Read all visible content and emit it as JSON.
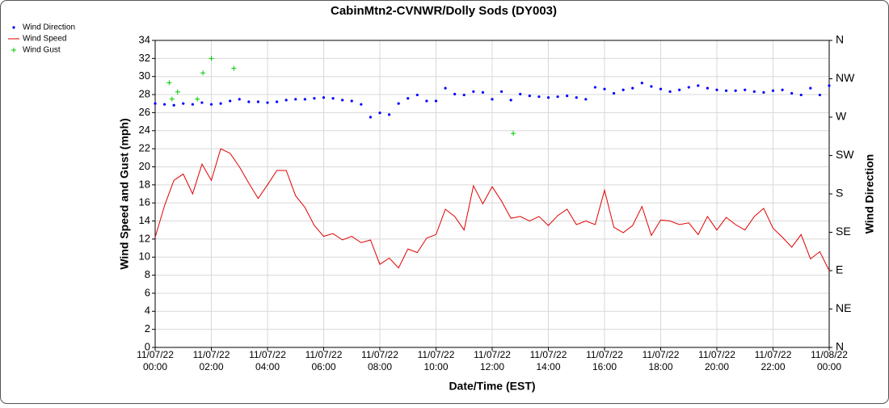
{
  "chart_data": {
    "type": "line",
    "title": "CabinMtn2-CVNWR/Dolly Sods (DY003)",
    "xlabel": "Date/Time (EST)",
    "ylabel": "Wind Speed and Gust (mph)",
    "y2label": "Wind Direction",
    "x": [
      0,
      20,
      40,
      60,
      80,
      100,
      120,
      140,
      160,
      180,
      200,
      220,
      240,
      260,
      280,
      300,
      320,
      340,
      360,
      380,
      400,
      420,
      440,
      460,
      480,
      500,
      520,
      540,
      560,
      580,
      600,
      620,
      640,
      660,
      680,
      700,
      720,
      740,
      760,
      780,
      800,
      820,
      840,
      860,
      880,
      900,
      920,
      940,
      960,
      980,
      1000,
      1020,
      1040,
      1060,
      1080,
      1100,
      1120,
      1140,
      1160,
      1180,
      1200,
      1220,
      1240,
      1260,
      1280,
      1300,
      1320,
      1340,
      1360,
      1380,
      1400,
      1420,
      1440
    ],
    "xlim": [
      0,
      1440
    ],
    "xticks": [
      {
        "value": 0,
        "label": "11/07/22 00:00"
      },
      {
        "value": 120,
        "label": "11/07/22 02:00"
      },
      {
        "value": 240,
        "label": "11/07/22 04:00"
      },
      {
        "value": 360,
        "label": "11/07/22 06:00"
      },
      {
        "value": 480,
        "label": "11/07/22 08:00"
      },
      {
        "value": 600,
        "label": "11/07/22 10:00"
      },
      {
        "value": 720,
        "label": "11/07/22 12:00"
      },
      {
        "value": 840,
        "label": "11/07/22 14:00"
      },
      {
        "value": 960,
        "label": "11/07/22 16:00"
      },
      {
        "value": 1080,
        "label": "11/07/22 18:00"
      },
      {
        "value": 1200,
        "label": "11/07/22 20:00"
      },
      {
        "value": 1320,
        "label": "11/07/22 22:00"
      },
      {
        "value": 1440,
        "label": "11/08/22 00:00"
      }
    ],
    "ylim": [
      0,
      34
    ],
    "yticks": [
      0,
      2,
      4,
      6,
      8,
      10,
      12,
      14,
      16,
      18,
      20,
      22,
      24,
      26,
      28,
      30,
      32,
      34
    ],
    "y2lim": [
      0,
      360
    ],
    "y2ticks": [
      {
        "value": 0,
        "label": "N"
      },
      {
        "value": 45,
        "label": "NE"
      },
      {
        "value": 90,
        "label": "E"
      },
      {
        "value": 135,
        "label": "SE"
      },
      {
        "value": 180,
        "label": "S"
      },
      {
        "value": 225,
        "label": "SW"
      },
      {
        "value": 270,
        "label": "W"
      },
      {
        "value": 315,
        "label": "NW"
      },
      {
        "value": 360,
        "label": "N"
      }
    ],
    "grid": true,
    "legend": "top-left",
    "series": [
      {
        "name": "Wind Direction",
        "color": "#0000ff",
        "mark": "dot",
        "axis": "y2",
        "values": [
          286,
          285,
          284,
          286,
          285,
          287,
          285,
          286,
          289,
          291,
          288,
          288,
          287,
          288,
          290,
          291,
          291,
          292,
          293,
          292,
          290,
          289,
          285,
          270,
          275,
          273,
          286,
          292,
          296,
          289,
          289,
          304,
          297,
          296,
          300,
          299,
          291,
          300,
          290,
          297,
          295,
          294,
          293,
          294,
          295,
          293,
          291,
          305,
          303,
          298,
          302,
          304,
          310,
          306,
          303,
          300,
          302,
          305,
          307,
          304,
          302,
          301,
          301,
          302,
          300,
          299,
          301,
          302,
          298,
          296,
          304,
          296,
          307
        ]
      },
      {
        "name": "Wind Speed",
        "color": "#e00000",
        "mark": "line",
        "values": [
          12.2,
          15.7,
          18.5,
          19.2,
          17.0,
          20.3,
          18.5,
          22.0,
          21.5,
          20.0,
          18.2,
          16.5,
          18.0,
          19.6,
          19.6,
          16.8,
          15.5,
          13.5,
          12.3,
          12.6,
          11.9,
          12.3,
          11.6,
          11.9,
          9.2,
          9.9,
          8.8,
          10.9,
          10.5,
          12.1,
          12.5,
          15.3,
          14.5,
          13.0,
          17.9,
          15.9,
          17.8,
          16.2,
          14.3,
          14.5,
          14.0,
          14.5,
          13.5,
          14.6,
          15.3,
          13.6,
          14.0,
          13.6,
          17.4,
          13.3,
          12.7,
          13.5,
          15.6,
          12.4,
          14.1,
          14.0,
          13.6,
          13.8,
          12.5,
          14.5,
          13.0,
          14.4,
          13.6,
          13.0,
          14.5,
          15.4,
          13.2,
          12.2,
          11.1,
          12.5,
          9.8,
          10.6,
          8.5
        ]
      },
      {
        "name": "Wind Gust",
        "color": "#00cc00",
        "mark": "plus",
        "x": [
          30,
          36,
          48,
          90,
          102,
          120,
          168,
          765
        ],
        "values": [
          29.3,
          27.5,
          28.3,
          27.5,
          30.4,
          32.0,
          30.9,
          23.7
        ]
      }
    ]
  }
}
